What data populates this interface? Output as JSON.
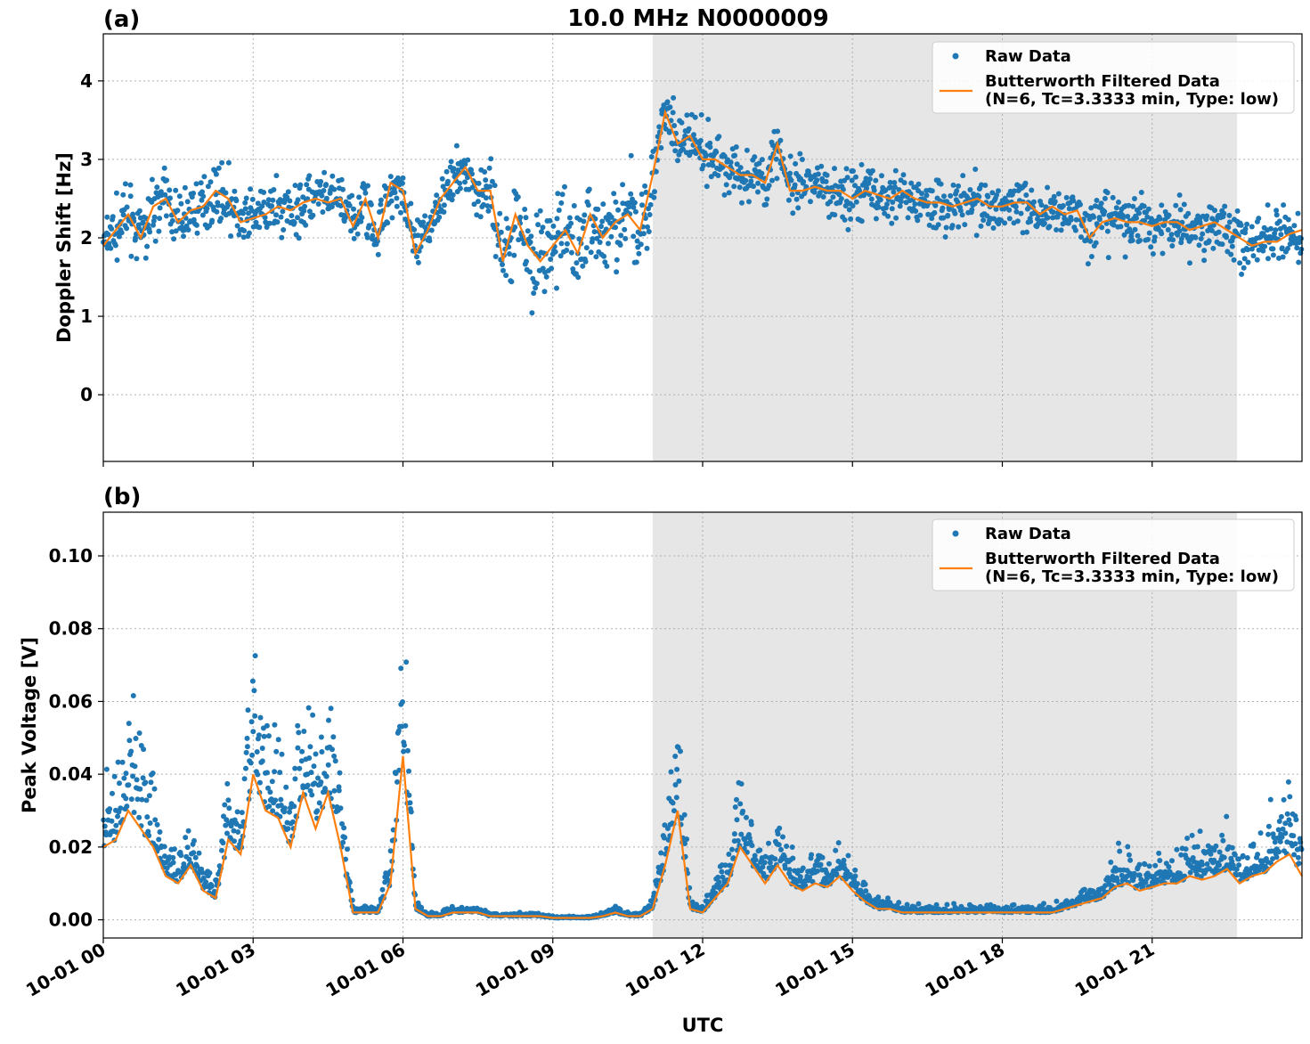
{
  "figure": {
    "title": "10.0 MHz N0000009",
    "xlabel": "UTC",
    "x_tick_labels": [
      "10-01 00",
      "10-01 03",
      "10-01 06",
      "10-01 09",
      "10-01 12",
      "10-01 15",
      "10-01 18",
      "10-01 21"
    ]
  },
  "legend": {
    "raw": "Raw Data",
    "filtered_line1": "Butterworth Filtered Data",
    "filtered_line2": "(N=6, Tc=3.3333 min, Type: low)"
  },
  "colors": {
    "raw": "#1f77b4",
    "filtered": "#ff7f0e",
    "shade": "#e6e6e6"
  },
  "chart_data": [
    {
      "type": "scatter",
      "panel": "(a)",
      "title": "10.0 MHz N0000009",
      "ylabel": "Doppler Shift [Hz]",
      "xlim_hours": [
        0,
        24
      ],
      "ylim": [
        -0.85,
        4.6
      ],
      "yticks": [
        0,
        1,
        2,
        3,
        4
      ],
      "grid": true,
      "legend_position": "top-right",
      "shaded_region_hours": [
        11,
        22.7
      ],
      "series": [
        {
          "name": "Butterworth Filtered Data",
          "kind": "line",
          "x_hours": [
            0,
            0.25,
            0.5,
            0.75,
            1,
            1.25,
            1.5,
            1.75,
            2,
            2.25,
            2.5,
            2.75,
            3,
            3.25,
            3.5,
            3.75,
            4,
            4.25,
            4.5,
            4.75,
            5,
            5.25,
            5.5,
            5.75,
            6,
            6.25,
            6.5,
            6.75,
            7,
            7.25,
            7.5,
            7.75,
            8,
            8.25,
            8.5,
            8.75,
            9,
            9.25,
            9.5,
            9.75,
            10,
            10.25,
            10.5,
            10.75,
            11,
            11.25,
            11.5,
            11.75,
            12,
            12.25,
            12.5,
            12.75,
            13,
            13.25,
            13.5,
            13.75,
            14,
            14.25,
            14.5,
            14.75,
            15,
            15.25,
            15.5,
            15.75,
            16,
            16.25,
            16.5,
            16.75,
            17,
            17.25,
            17.5,
            17.75,
            18,
            18.25,
            18.5,
            18.75,
            19,
            19.25,
            19.5,
            19.75,
            20,
            20.25,
            20.5,
            20.75,
            21,
            21.25,
            21.5,
            21.75,
            22,
            22.25,
            22.5,
            22.75,
            23,
            23.25,
            23.5,
            23.75,
            24
          ],
          "y": [
            1.9,
            2.1,
            2.3,
            2.0,
            2.4,
            2.5,
            2.2,
            2.35,
            2.4,
            2.6,
            2.5,
            2.2,
            2.25,
            2.3,
            2.4,
            2.35,
            2.45,
            2.5,
            2.45,
            2.5,
            2.15,
            2.5,
            2.0,
            2.7,
            2.6,
            1.8,
            2.1,
            2.5,
            2.7,
            2.9,
            2.6,
            2.6,
            1.7,
            2.3,
            1.9,
            1.7,
            1.9,
            2.1,
            1.8,
            2.3,
            2.0,
            2.2,
            2.3,
            2.1,
            2.8,
            3.6,
            3.2,
            3.3,
            3.0,
            3.0,
            2.9,
            2.8,
            2.8,
            2.7,
            3.2,
            2.6,
            2.6,
            2.65,
            2.6,
            2.6,
            2.5,
            2.6,
            2.55,
            2.5,
            2.6,
            2.5,
            2.45,
            2.45,
            2.4,
            2.45,
            2.5,
            2.4,
            2.4,
            2.45,
            2.45,
            2.3,
            2.4,
            2.3,
            2.35,
            2.0,
            2.2,
            2.25,
            2.2,
            2.2,
            2.15,
            2.2,
            2.2,
            2.1,
            2.15,
            2.2,
            2.1,
            2.0,
            1.9,
            1.95,
            1.95,
            2.05,
            2.1
          ]
        },
        {
          "name": "Raw Data",
          "kind": "points",
          "note_values": "scatter spread around filtered line",
          "spread_hz": 0.35
        }
      ]
    },
    {
      "type": "scatter",
      "panel": "(b)",
      "ylabel": "Peak Voltage [V]",
      "xlim_hours": [
        0,
        24
      ],
      "ylim": [
        -0.005,
        0.112
      ],
      "yticks": [
        0.0,
        0.02,
        0.04,
        0.06,
        0.08,
        0.1
      ],
      "ytick_labels": [
        "0.00",
        "0.02",
        "0.04",
        "0.06",
        "0.08",
        "0.10"
      ],
      "grid": true,
      "legend_position": "top-right",
      "shaded_region_hours": [
        11,
        22.7
      ],
      "series": [
        {
          "name": "Butterworth Filtered Data",
          "kind": "line",
          "x_hours": [
            0,
            0.25,
            0.5,
            0.75,
            1,
            1.25,
            1.5,
            1.75,
            2,
            2.25,
            2.5,
            2.75,
            3,
            3.25,
            3.5,
            3.75,
            4,
            4.25,
            4.5,
            4.75,
            5,
            5.25,
            5.5,
            5.75,
            6,
            6.25,
            6.5,
            6.75,
            7,
            7.25,
            7.5,
            7.75,
            8,
            8.25,
            8.5,
            8.75,
            9,
            9.25,
            9.5,
            9.75,
            10,
            10.25,
            10.5,
            10.75,
            11,
            11.25,
            11.5,
            11.75,
            12,
            12.25,
            12.5,
            12.75,
            13,
            13.25,
            13.5,
            13.75,
            14,
            14.25,
            14.5,
            14.75,
            15,
            15.25,
            15.5,
            15.75,
            16,
            16.25,
            16.5,
            16.75,
            17,
            17.25,
            17.5,
            17.75,
            18,
            18.25,
            18.5,
            18.75,
            19,
            19.25,
            19.5,
            19.75,
            20,
            20.25,
            20.5,
            20.75,
            21,
            21.25,
            21.5,
            21.75,
            22,
            22.25,
            22.5,
            22.75,
            23,
            23.25,
            23.5,
            23.75,
            24
          ],
          "y": [
            0.02,
            0.022,
            0.03,
            0.025,
            0.02,
            0.012,
            0.01,
            0.015,
            0.008,
            0.006,
            0.022,
            0.018,
            0.04,
            0.03,
            0.028,
            0.02,
            0.035,
            0.025,
            0.035,
            0.02,
            0.002,
            0.002,
            0.002,
            0.01,
            0.045,
            0.003,
            0.001,
            0.001,
            0.002,
            0.002,
            0.002,
            0.001,
            0.001,
            0.001,
            0.001,
            0.001,
            0.0005,
            0.0005,
            0.0005,
            0.0005,
            0.001,
            0.002,
            0.001,
            0.001,
            0.003,
            0.015,
            0.03,
            0.003,
            0.002,
            0.006,
            0.01,
            0.02,
            0.015,
            0.01,
            0.015,
            0.01,
            0.008,
            0.01,
            0.009,
            0.012,
            0.008,
            0.005,
            0.003,
            0.003,
            0.002,
            0.002,
            0.002,
            0.002,
            0.002,
            0.002,
            0.002,
            0.002,
            0.002,
            0.002,
            0.002,
            0.002,
            0.002,
            0.003,
            0.004,
            0.005,
            0.006,
            0.009,
            0.01,
            0.008,
            0.009,
            0.01,
            0.01,
            0.012,
            0.011,
            0.012,
            0.014,
            0.01,
            0.012,
            0.013,
            0.016,
            0.018,
            0.012
          ]
        },
        {
          "name": "Raw Data",
          "kind": "points",
          "spread_fraction": 0.7
        }
      ]
    }
  ]
}
